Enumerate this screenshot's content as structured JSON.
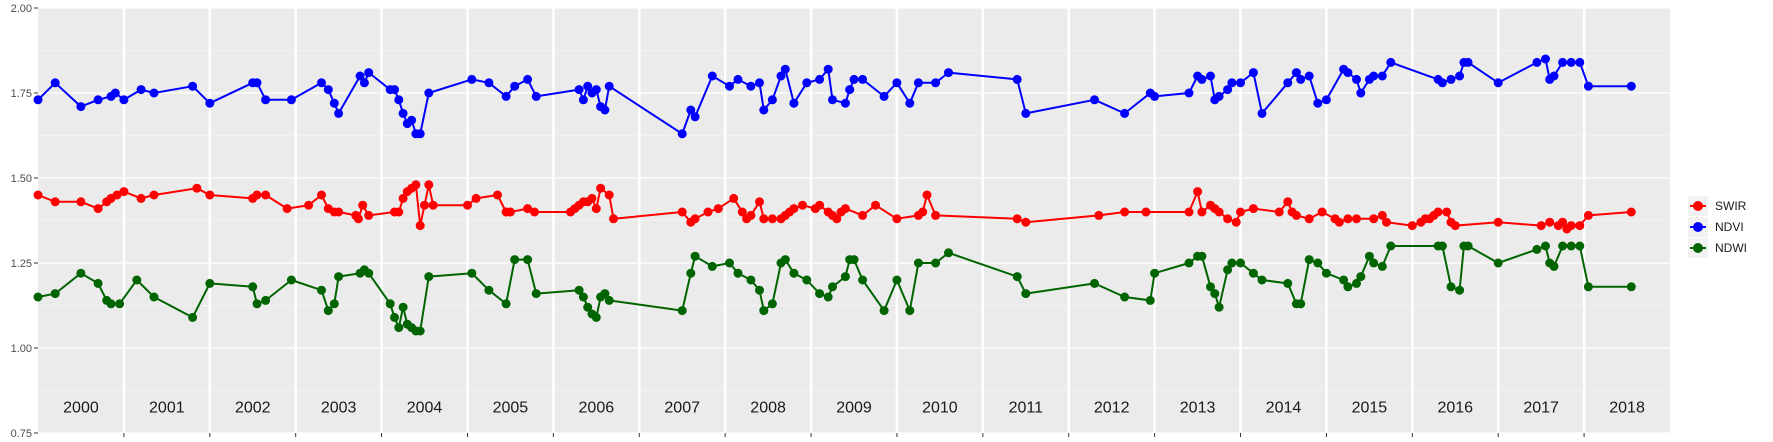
{
  "chart_data": {
    "type": "line",
    "ylim": [
      0.75,
      2.0
    ],
    "xlim": [
      2000.0,
      2019.0
    ],
    "y_ticks": [
      "0.75",
      "1.00",
      "1.25",
      "1.50",
      "1.75",
      "2.00"
    ],
    "y_tick_values": [
      0.75,
      1.0,
      1.25,
      1.5,
      1.75,
      2.0
    ],
    "year_labels": [
      "2000",
      "2001",
      "2002",
      "2003",
      "2004",
      "2005",
      "2006",
      "2007",
      "2008",
      "2009",
      "2010",
      "2011",
      "2012",
      "2013",
      "2014",
      "2015",
      "2016",
      "2017",
      "2018"
    ],
    "grid": true,
    "legend_position": "right",
    "series": [
      {
        "name": "SWIR",
        "color": "#ff0000",
        "x": [
          2000.0,
          2000.2,
          2000.5,
          2000.7,
          2000.8,
          2000.85,
          2000.92,
          2001.0,
          2001.2,
          2001.35,
          2001.85,
          2002.0,
          2002.5,
          2002.55,
          2002.65,
          2002.9,
          2003.15,
          2003.3,
          2003.38,
          2003.45,
          2003.5,
          2003.7,
          2003.73,
          2003.78,
          2003.85,
          2004.15,
          2004.2,
          2004.25,
          2004.3,
          2004.35,
          2004.4,
          2004.45,
          2004.5,
          2004.55,
          2004.6,
          2005.0,
          2005.1,
          2005.35,
          2005.45,
          2005.5,
          2005.7,
          2005.78,
          2006.2,
          2006.25,
          2006.3,
          2006.35,
          2006.4,
          2006.45,
          2006.5,
          2006.55,
          2006.65,
          2006.7,
          2007.5,
          2007.6,
          2007.65,
          2007.8,
          2007.92,
          2008.1,
          2008.2,
          2008.25,
          2008.3,
          2008.4,
          2008.45,
          2008.55,
          2008.65,
          2008.7,
          2008.75,
          2008.8,
          2008.9,
          2009.05,
          2009.1,
          2009.2,
          2009.25,
          2009.3,
          2009.35,
          2009.4,
          2009.6,
          2009.75,
          2010.0,
          2010.25,
          2010.3,
          2010.35,
          2010.45,
          2011.4,
          2011.5,
          2012.35,
          2012.65,
          2012.9,
          2013.4,
          2013.5,
          2013.55,
          2013.65,
          2013.7,
          2013.75,
          2013.85,
          2013.95,
          2014.0,
          2014.15,
          2014.45,
          2014.55,
          2014.6,
          2014.65,
          2014.8,
          2014.95,
          2015.1,
          2015.15,
          2015.25,
          2015.35,
          2015.55,
          2015.65,
          2015.7,
          2016.0,
          2016.1,
          2016.15,
          2016.2,
          2016.25,
          2016.3,
          2016.4,
          2016.45,
          2016.5,
          2017.0,
          2017.5,
          2017.6,
          2017.7,
          2017.75,
          2017.8,
          2017.85,
          2017.95,
          2018.05,
          2018.55
        ],
        "values": [
          1.45,
          1.43,
          1.43,
          1.41,
          1.43,
          1.44,
          1.45,
          1.46,
          1.44,
          1.45,
          1.47,
          1.45,
          1.44,
          1.45,
          1.45,
          1.41,
          1.42,
          1.45,
          1.41,
          1.4,
          1.4,
          1.39,
          1.38,
          1.42,
          1.39,
          1.4,
          1.4,
          1.44,
          1.46,
          1.47,
          1.48,
          1.36,
          1.42,
          1.48,
          1.42,
          1.42,
          1.44,
          1.45,
          1.4,
          1.4,
          1.41,
          1.4,
          1.4,
          1.41,
          1.42,
          1.43,
          1.43,
          1.44,
          1.41,
          1.47,
          1.45,
          1.38,
          1.4,
          1.37,
          1.38,
          1.4,
          1.41,
          1.44,
          1.4,
          1.38,
          1.39,
          1.43,
          1.38,
          1.38,
          1.38,
          1.39,
          1.4,
          1.41,
          1.42,
          1.41,
          1.42,
          1.4,
          1.39,
          1.38,
          1.4,
          1.41,
          1.39,
          1.42,
          1.38,
          1.39,
          1.4,
          1.45,
          1.39,
          1.38,
          1.37,
          1.39,
          1.4,
          1.4,
          1.4,
          1.46,
          1.4,
          1.42,
          1.41,
          1.4,
          1.38,
          1.37,
          1.4,
          1.41,
          1.4,
          1.43,
          1.4,
          1.39,
          1.38,
          1.4,
          1.38,
          1.37,
          1.38,
          1.38,
          1.38,
          1.39,
          1.37,
          1.36,
          1.37,
          1.38,
          1.38,
          1.39,
          1.4,
          1.4,
          1.37,
          1.36,
          1.37,
          1.36,
          1.37,
          1.36,
          1.37,
          1.35,
          1.36,
          1.36,
          1.39,
          1.4
        ]
      },
      {
        "name": "NDVI",
        "color": "#0000ff",
        "x": [
          2000.0,
          2000.2,
          2000.5,
          2000.7,
          2000.85,
          2000.9,
          2001.0,
          2001.2,
          2001.35,
          2001.8,
          2002.0,
          2002.5,
          2002.55,
          2002.65,
          2002.95,
          2003.3,
          2003.38,
          2003.45,
          2003.5,
          2003.75,
          2003.8,
          2003.85,
          2004.1,
          2004.15,
          2004.2,
          2004.25,
          2004.3,
          2004.35,
          2004.4,
          2004.45,
          2004.55,
          2005.05,
          2005.25,
          2005.45,
          2005.55,
          2005.7,
          2005.8,
          2006.3,
          2006.35,
          2006.4,
          2006.45,
          2006.5,
          2006.55,
          2006.6,
          2006.65,
          2007.5,
          2007.6,
          2007.65,
          2007.85,
          2008.05,
          2008.15,
          2008.3,
          2008.4,
          2008.45,
          2008.55,
          2008.65,
          2008.7,
          2008.8,
          2008.95,
          2009.1,
          2009.2,
          2009.25,
          2009.4,
          2009.45,
          2009.5,
          2009.6,
          2009.85,
          2010.0,
          2010.15,
          2010.25,
          2010.45,
          2010.6,
          2011.4,
          2011.5,
          2012.3,
          2012.65,
          2012.95,
          2013.0,
          2013.4,
          2013.5,
          2013.55,
          2013.65,
          2013.7,
          2013.75,
          2013.85,
          2013.9,
          2014.0,
          2014.15,
          2014.25,
          2014.55,
          2014.65,
          2014.7,
          2014.8,
          2014.9,
          2015.0,
          2015.2,
          2015.25,
          2015.35,
          2015.4,
          2015.5,
          2015.55,
          2015.65,
          2015.75,
          2016.3,
          2016.35,
          2016.45,
          2016.55,
          2016.6,
          2016.65,
          2017.0,
          2017.45,
          2017.55,
          2017.6,
          2017.65,
          2017.75,
          2017.85,
          2017.95,
          2018.05,
          2018.55
        ],
        "values": [
          1.73,
          1.78,
          1.71,
          1.73,
          1.74,
          1.75,
          1.73,
          1.76,
          1.75,
          1.77,
          1.72,
          1.78,
          1.78,
          1.73,
          1.73,
          1.78,
          1.76,
          1.72,
          1.69,
          1.8,
          1.78,
          1.81,
          1.76,
          1.76,
          1.73,
          1.69,
          1.66,
          1.67,
          1.63,
          1.63,
          1.75,
          1.79,
          1.78,
          1.74,
          1.77,
          1.79,
          1.74,
          1.76,
          1.73,
          1.77,
          1.75,
          1.76,
          1.71,
          1.7,
          1.77,
          1.63,
          1.7,
          1.68,
          1.8,
          1.77,
          1.79,
          1.77,
          1.78,
          1.7,
          1.73,
          1.8,
          1.82,
          1.72,
          1.78,
          1.79,
          1.82,
          1.73,
          1.72,
          1.76,
          1.79,
          1.79,
          1.74,
          1.78,
          1.72,
          1.78,
          1.78,
          1.81,
          1.79,
          1.69,
          1.73,
          1.69,
          1.75,
          1.74,
          1.75,
          1.8,
          1.79,
          1.8,
          1.73,
          1.74,
          1.76,
          1.78,
          1.78,
          1.81,
          1.69,
          1.78,
          1.81,
          1.79,
          1.8,
          1.72,
          1.73,
          1.82,
          1.81,
          1.79,
          1.75,
          1.79,
          1.8,
          1.8,
          1.84,
          1.79,
          1.78,
          1.79,
          1.8,
          1.84,
          1.84,
          1.78,
          1.84,
          1.85,
          1.79,
          1.8,
          1.84,
          1.84,
          1.84,
          1.77,
          1.77
        ]
      },
      {
        "name": "NDWI",
        "color": "#006400",
        "x": [
          2000.0,
          2000.2,
          2000.5,
          2000.7,
          2000.8,
          2000.85,
          2000.95,
          2001.15,
          2001.35,
          2001.8,
          2002.0,
          2002.5,
          2002.55,
          2002.65,
          2002.95,
          2003.3,
          2003.38,
          2003.45,
          2003.5,
          2003.75,
          2003.8,
          2003.85,
          2004.1,
          2004.15,
          2004.2,
          2004.25,
          2004.3,
          2004.35,
          2004.4,
          2004.45,
          2004.55,
          2005.05,
          2005.25,
          2005.45,
          2005.55,
          2005.7,
          2005.8,
          2006.3,
          2006.35,
          2006.4,
          2006.45,
          2006.5,
          2006.55,
          2006.6,
          2006.65,
          2007.5,
          2007.6,
          2007.65,
          2007.85,
          2008.05,
          2008.15,
          2008.3,
          2008.4,
          2008.45,
          2008.55,
          2008.65,
          2008.7,
          2008.8,
          2008.95,
          2009.1,
          2009.2,
          2009.25,
          2009.4,
          2009.45,
          2009.5,
          2009.6,
          2009.85,
          2010.0,
          2010.15,
          2010.25,
          2010.45,
          2010.6,
          2011.4,
          2011.5,
          2012.3,
          2012.65,
          2012.95,
          2013.0,
          2013.4,
          2013.5,
          2013.55,
          2013.65,
          2013.7,
          2013.75,
          2013.85,
          2013.9,
          2014.0,
          2014.15,
          2014.25,
          2014.55,
          2014.65,
          2014.7,
          2014.8,
          2014.9,
          2015.0,
          2015.2,
          2015.25,
          2015.35,
          2015.4,
          2015.5,
          2015.55,
          2015.65,
          2015.75,
          2016.3,
          2016.35,
          2016.45,
          2016.55,
          2016.6,
          2016.65,
          2017.0,
          2017.45,
          2017.55,
          2017.6,
          2017.65,
          2017.75,
          2017.85,
          2017.95,
          2018.05,
          2018.55
        ],
        "values": [
          1.15,
          1.16,
          1.22,
          1.19,
          1.14,
          1.13,
          1.13,
          1.2,
          1.15,
          1.09,
          1.19,
          1.18,
          1.13,
          1.14,
          1.2,
          1.17,
          1.11,
          1.13,
          1.21,
          1.22,
          1.23,
          1.22,
          1.13,
          1.09,
          1.06,
          1.12,
          1.07,
          1.06,
          1.05,
          1.05,
          1.21,
          1.22,
          1.17,
          1.13,
          1.26,
          1.26,
          1.16,
          1.17,
          1.15,
          1.12,
          1.1,
          1.09,
          1.15,
          1.16,
          1.14,
          1.11,
          1.22,
          1.27,
          1.24,
          1.25,
          1.22,
          1.2,
          1.17,
          1.11,
          1.13,
          1.25,
          1.26,
          1.22,
          1.2,
          1.16,
          1.15,
          1.18,
          1.21,
          1.26,
          1.26,
          1.2,
          1.11,
          1.2,
          1.11,
          1.25,
          1.25,
          1.28,
          1.21,
          1.16,
          1.19,
          1.15,
          1.14,
          1.22,
          1.25,
          1.27,
          1.27,
          1.18,
          1.16,
          1.12,
          1.23,
          1.25,
          1.25,
          1.22,
          1.2,
          1.19,
          1.13,
          1.13,
          1.26,
          1.25,
          1.22,
          1.2,
          1.18,
          1.19,
          1.21,
          1.27,
          1.25,
          1.24,
          1.3,
          1.3,
          1.3,
          1.18,
          1.17,
          1.3,
          1.3,
          1.25,
          1.29,
          1.3,
          1.25,
          1.24,
          1.3,
          1.3,
          1.3,
          1.18,
          1.18
        ]
      }
    ]
  }
}
